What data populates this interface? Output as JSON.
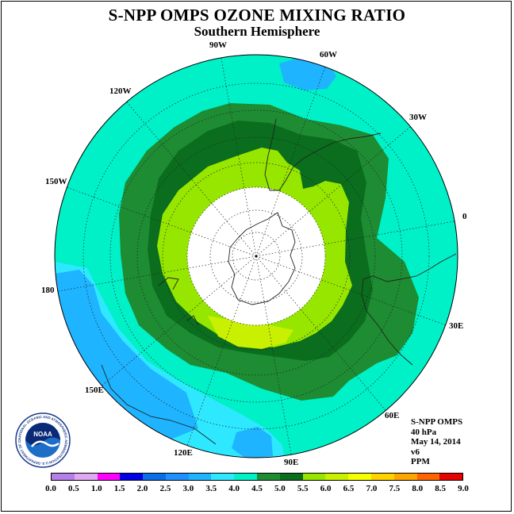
{
  "title": "S-NPP OMPS OZONE MIXING RATIO",
  "subtitle": "Southern Hemisphere",
  "longitude_labels": {
    "lon_90w": "90W",
    "lon_60w": "60W",
    "lon_30w": "30W",
    "lon_120w": "120W",
    "lon_150w": "150W",
    "lon_0": "0",
    "lon_180": "180",
    "lon_30e": "30E",
    "lon_60e": "60E",
    "lon_90e": "90E",
    "lon_120e": "120E",
    "lon_150e": "150E"
  },
  "info": {
    "instrument": "S-NPP OMPS",
    "level": "40 hPa",
    "date": "May 14, 2014",
    "version": "v6",
    "unit": "PPM"
  },
  "logo": {
    "text": "NOAA",
    "ring_text": "NATIONAL OCEANIC AND ATMOSPHERIC ADMINISTRATION U.S. DEPARTMENT OF COMMERCE"
  },
  "colorbar": {
    "ticks": [
      "0.0",
      "0.5",
      "1.0",
      "1.5",
      "2.0",
      "2.5",
      "3.0",
      "3.5",
      "4.0",
      "4.5",
      "5.0",
      "5.5",
      "6.0",
      "6.5",
      "7.0",
      "7.5",
      "8.0",
      "8.5",
      "9.0"
    ],
    "colors": [
      "#b57ee8",
      "#e0a8f0",
      "#ff00ff",
      "#0000e6",
      "#0a6ee8",
      "#1e90ff",
      "#1eb4ff",
      "#2ee8ff",
      "#00f0c8",
      "#1e8c32",
      "#0a6e1e",
      "#96e600",
      "#c8f000",
      "#f5ff00",
      "#ffd200",
      "#ffa500",
      "#ff6400",
      "#e60000",
      "#8c5a46"
    ]
  },
  "map_colors": {
    "band_3_5_to_4_0": "#2ee8ff",
    "band_3_0_to_3_5": "#1eb4ff",
    "band_4_0_to_4_5": "#00f0c8",
    "band_4_5_to_5_0": "#1e8c32",
    "band_5_0_to_5_5": "#0a6e1e",
    "band_5_5_to_6_0": "#96e600",
    "band_6_0_to_6_5": "#c8f000",
    "polar_no_data": "#ffffff"
  }
}
